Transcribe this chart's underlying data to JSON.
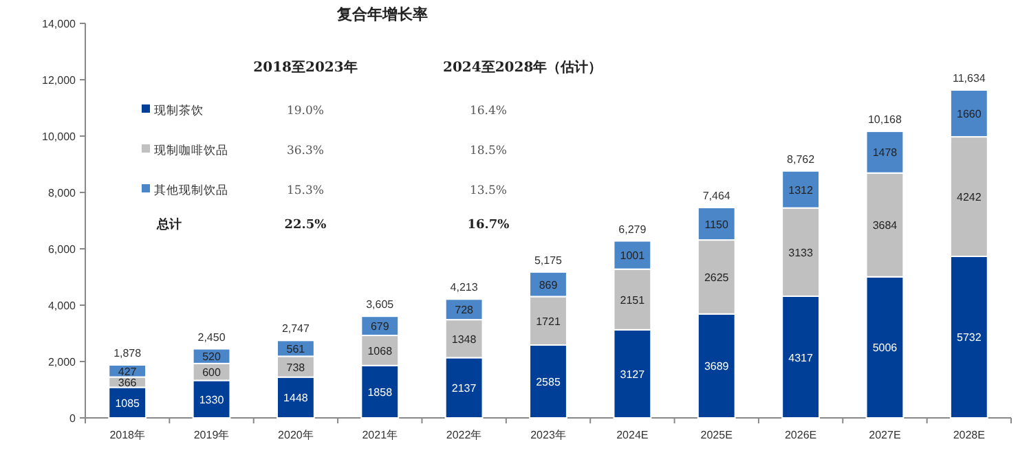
{
  "chart_data": {
    "type": "bar",
    "stacked": true,
    "legend": "top left",
    "data_labels": true,
    "categories": [
      "2018年",
      "2019年",
      "2020年",
      "2021年",
      "2022年",
      "2023年",
      "2024E",
      "2025E",
      "2026E",
      "2027E",
      "2028E"
    ],
    "series": [
      {
        "name": "现制茶饮",
        "color": "#003f98",
        "values": [
          1085,
          1330,
          1448,
          1858,
          2137,
          2585,
          3127,
          3689,
          4317,
          5006,
          5732
        ]
      },
      {
        "name": "现制咖啡饮品",
        "color": "#c0c0c0",
        "values": [
          366,
          600,
          738,
          1068,
          1348,
          1721,
          2151,
          2625,
          3133,
          3684,
          4242
        ]
      },
      {
        "name": "其他现制饮品",
        "color": "#4a86c8",
        "values": [
          427,
          520,
          561,
          679,
          728,
          869,
          1001,
          1150,
          1312,
          1478,
          1660
        ]
      }
    ],
    "totals": [
      "1,878",
      "2,450",
      "2,747",
      "3,605",
      "4,213",
      "5,175",
      "6,279",
      "7,464",
      "8,762",
      "10,168",
      "11,634"
    ],
    "ylim": [
      0,
      14000
    ],
    "yticks": [
      0,
      {
        "value": 2000,
        "label": "2,000"
      },
      {
        "value": 4000,
        "label": "4,000"
      },
      {
        "value": 6000,
        "label": "6,000"
      },
      {
        "value": 8000,
        "label": "8,000"
      },
      {
        "value": 10000,
        "label": "10,000"
      },
      {
        "value": 12000,
        "label": "12,000"
      },
      {
        "value": 14000,
        "label": "14,000"
      }
    ],
    "annotations": [
      "复合年增长率",
      "2018至2023年",
      "2024至2028年（估计）",
      "19.0%",
      "16.4%",
      "36.3%",
      "18.5%",
      "15.3%",
      "13.5%",
      "总计",
      "22.5%",
      "16.7%"
    ]
  }
}
